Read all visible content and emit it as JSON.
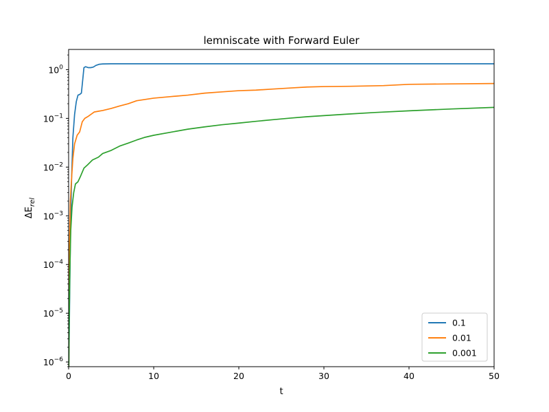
{
  "chart_data": {
    "type": "line",
    "title": "lemniscate with Forward Euler",
    "xlabel": "t",
    "ylabel": {
      "prefix": "ΔE",
      "subscript": "rel"
    },
    "xlim": [
      0,
      50
    ],
    "ylim": [
      8e-07,
      2.6
    ],
    "yscale": "log",
    "xticks": [
      0,
      10,
      20,
      30,
      40,
      50
    ],
    "xtick_labels": [
      "0",
      "10",
      "20",
      "30",
      "40",
      "50"
    ],
    "yticks": [
      {
        "value": 1e-06,
        "base": "10",
        "exp": "−6"
      },
      {
        "value": 1e-05,
        "base": "10",
        "exp": "−5"
      },
      {
        "value": 0.0001,
        "base": "10",
        "exp": "−4"
      },
      {
        "value": 0.001,
        "base": "10",
        "exp": "−3"
      },
      {
        "value": 0.01,
        "base": "10",
        "exp": "−2"
      },
      {
        "value": 0.1,
        "base": "10",
        "exp": "−1"
      },
      {
        "value": 1,
        "base": "10",
        "exp": "0"
      }
    ],
    "legend_position": "lower-right",
    "grid": false,
    "series": [
      {
        "name": "0.1",
        "color": "#1f77b4",
        "points": [
          [
            0.02,
            8e-07
          ],
          [
            0.1,
            1e-05
          ],
          [
            0.2,
            0.0003
          ],
          [
            0.35,
            0.006
          ],
          [
            0.5,
            0.04
          ],
          [
            0.7,
            0.12
          ],
          [
            0.9,
            0.22
          ],
          [
            1.1,
            0.3
          ],
          [
            1.3,
            0.31
          ],
          [
            1.5,
            0.33
          ],
          [
            1.65,
            0.6
          ],
          [
            1.8,
            1.1
          ],
          [
            2.0,
            1.15
          ],
          [
            2.3,
            1.1
          ],
          [
            2.6,
            1.1
          ],
          [
            2.9,
            1.13
          ],
          [
            3.2,
            1.22
          ],
          [
            3.6,
            1.29
          ],
          [
            4.0,
            1.31
          ],
          [
            5.0,
            1.32
          ],
          [
            10,
            1.32
          ],
          [
            20,
            1.32
          ],
          [
            30,
            1.32
          ],
          [
            40,
            1.32
          ],
          [
            50,
            1.32
          ]
        ]
      },
      {
        "name": "0.01",
        "color": "#ff7f0e",
        "points": [
          [
            0.02,
            8e-07
          ],
          [
            0.05,
            1e-05
          ],
          [
            0.1,
            0.0002
          ],
          [
            0.2,
            0.002
          ],
          [
            0.35,
            0.006
          ],
          [
            0.5,
            0.015
          ],
          [
            0.7,
            0.03
          ],
          [
            1.0,
            0.045
          ],
          [
            1.3,
            0.053
          ],
          [
            1.6,
            0.085
          ],
          [
            1.9,
            0.1
          ],
          [
            2.3,
            0.11
          ],
          [
            3.0,
            0.135
          ],
          [
            3.5,
            0.14
          ],
          [
            4.0,
            0.145
          ],
          [
            5.0,
            0.16
          ],
          [
            6.0,
            0.18
          ],
          [
            7.0,
            0.2
          ],
          [
            8.0,
            0.23
          ],
          [
            9.0,
            0.245
          ],
          [
            10,
            0.26
          ],
          [
            12,
            0.28
          ],
          [
            14,
            0.3
          ],
          [
            16,
            0.33
          ],
          [
            18,
            0.35
          ],
          [
            20,
            0.37
          ],
          [
            22,
            0.38
          ],
          [
            24,
            0.4
          ],
          [
            26,
            0.42
          ],
          [
            28,
            0.44
          ],
          [
            30,
            0.45
          ],
          [
            33,
            0.455
          ],
          [
            37,
            0.47
          ],
          [
            40,
            0.5
          ],
          [
            45,
            0.51
          ],
          [
            50,
            0.52
          ]
        ]
      },
      {
        "name": "0.001",
        "color": "#2ca02c",
        "points": [
          [
            0.02,
            8e-07
          ],
          [
            0.08,
            1e-05
          ],
          [
            0.15,
            8e-05
          ],
          [
            0.25,
            0.0005
          ],
          [
            0.4,
            0.0015
          ],
          [
            0.6,
            0.003
          ],
          [
            0.8,
            0.0045
          ],
          [
            1.1,
            0.005
          ],
          [
            1.4,
            0.0065
          ],
          [
            1.8,
            0.0095
          ],
          [
            2.2,
            0.011
          ],
          [
            2.8,
            0.014
          ],
          [
            3.5,
            0.016
          ],
          [
            4.0,
            0.019
          ],
          [
            5.0,
            0.022
          ],
          [
            6.0,
            0.027
          ],
          [
            7.0,
            0.031
          ],
          [
            8.0,
            0.036
          ],
          [
            9.0,
            0.041
          ],
          [
            10,
            0.045
          ],
          [
            12,
            0.052
          ],
          [
            14,
            0.06
          ],
          [
            16,
            0.067
          ],
          [
            18,
            0.074
          ],
          [
            20,
            0.08
          ],
          [
            22,
            0.087
          ],
          [
            24,
            0.094
          ],
          [
            26,
            0.101
          ],
          [
            28,
            0.108
          ],
          [
            30,
            0.114
          ],
          [
            33,
            0.123
          ],
          [
            36,
            0.132
          ],
          [
            40,
            0.143
          ],
          [
            45,
            0.156
          ],
          [
            50,
            0.168
          ]
        ]
      }
    ]
  }
}
